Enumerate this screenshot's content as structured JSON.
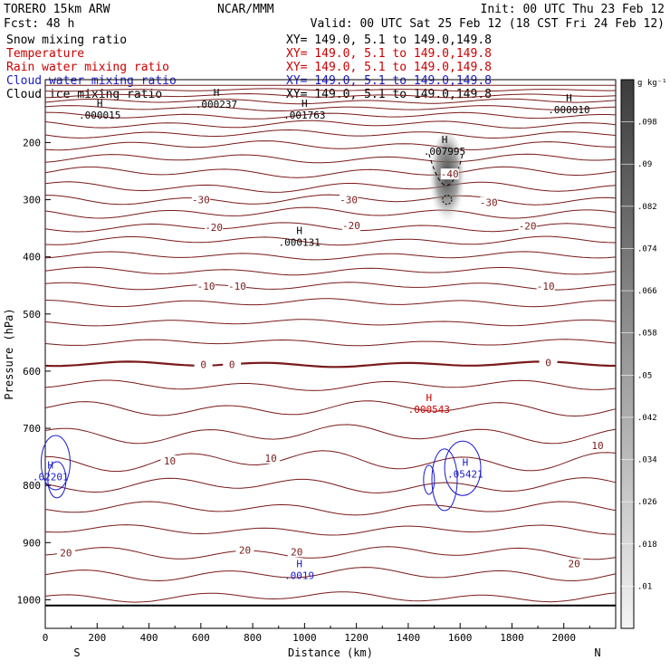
{
  "header": {
    "model": "TORERO  15km ARW",
    "org": "NCAR/MMM",
    "init": "Init: 00 UTC Thu 23 Feb 12",
    "fcst": "Fcst:   48 h",
    "valid": "Valid: 00 UTC Sat 25 Feb 12 (18 CST Fri 24 Feb 12)"
  },
  "fields": [
    {
      "name": "Snow mixing ratio",
      "xy": "",
      "color": "#000000"
    },
    {
      "name": "Temperature",
      "xy": "XY= 149.0,  5.1 to 149.0,149.8",
      "color": "#cc0000"
    },
    {
      "name": "Rain water mixing ratio",
      "xy": "XY= 149.0,  5.1 to 149.0,149.8",
      "color": "#cc0000"
    },
    {
      "name": "Cloud water mixing ratio",
      "xy": "XY= 149.0,  5.1 to 149.0,149.8",
      "color": "#1a1acc"
    },
    {
      "name": "Cloud ice mixing ratio",
      "xy": "XY= 149.0,  5.1 to 149.0,149.8",
      "color": "#000000"
    }
  ],
  "top_xy": "XY= 149.0,  5.1 to 149.0,149.8",
  "chart_data": {
    "type": "contour",
    "xlabel": "Distance (km)",
    "ylabel": "Pressure (hPa)",
    "xlim": [
      0,
      2200
    ],
    "ylim": [
      1050,
      90
    ],
    "x_ticks": [
      0,
      200,
      400,
      600,
      800,
      1000,
      1200,
      1400,
      1600,
      1800,
      2000
    ],
    "y_ticks": [
      200,
      300,
      400,
      500,
      600,
      700,
      800,
      900,
      1000
    ],
    "end_labels": {
      "left": "S",
      "right": "N"
    },
    "colorbar": {
      "unit": "g kg⁻¹",
      "levels": [
        ".098",
        ".09",
        ".082",
        ".074",
        ".066",
        ".058",
        ".05",
        ".042",
        ".034",
        ".026",
        ".018",
        ".01"
      ]
    },
    "isotherm_labels": [
      {
        "x": 600,
        "p": 300,
        "text": "-30"
      },
      {
        "x": 1170,
        "p": 300,
        "text": "-30"
      },
      {
        "x": 1560,
        "p": 255,
        "text": "-40"
      },
      {
        "x": 1710,
        "p": 305,
        "text": "-30"
      },
      {
        "x": 650,
        "p": 348,
        "text": "-20"
      },
      {
        "x": 1180,
        "p": 345,
        "text": "-20"
      },
      {
        "x": 1860,
        "p": 346,
        "text": "-20"
      },
      {
        "x": 620,
        "p": 451,
        "text": "-10"
      },
      {
        "x": 740,
        "p": 451,
        "text": "-10"
      },
      {
        "x": 1930,
        "p": 451,
        "text": "-10"
      },
      {
        "x": 610,
        "p": 588,
        "text": "0"
      },
      {
        "x": 720,
        "p": 588,
        "text": "0"
      },
      {
        "x": 1940,
        "p": 585,
        "text": "0"
      },
      {
        "x": 480,
        "p": 757,
        "text": "10"
      },
      {
        "x": 870,
        "p": 752,
        "text": "10"
      },
      {
        "x": 2130,
        "p": 730,
        "text": "10"
      },
      {
        "x": 80,
        "p": 918,
        "text": "20"
      },
      {
        "x": 770,
        "p": 913,
        "text": "20"
      },
      {
        "x": 970,
        "p": 916,
        "text": "20"
      },
      {
        "x": 2040,
        "p": 937,
        "text": "20"
      }
    ],
    "highs": [
      {
        "x": 660,
        "p": 123,
        "text": ".000237",
        "color": "#000000"
      },
      {
        "x": 210,
        "p": 142,
        "text": ".000015",
        "color": "#000000"
      },
      {
        "x": 1000,
        "p": 142,
        "text": ".001763",
        "color": "#000000"
      },
      {
        "x": 1540,
        "p": 206,
        "text": ".007995",
        "color": "#000000"
      },
      {
        "x": 2020,
        "p": 133,
        "text": ".000010",
        "color": "#000000"
      },
      {
        "x": 980,
        "p": 365,
        "text": ".000131",
        "color": "#000000"
      },
      {
        "x": 1480,
        "p": 657,
        "text": ".000543",
        "color": "#cc0000"
      },
      {
        "x": 1620,
        "p": 770,
        "text": ".05421",
        "color": "#1a1acc"
      },
      {
        "x": 20,
        "p": 775,
        "text": ".02201",
        "color": "#1a1acc"
      },
      {
        "x": 980,
        "p": 948,
        "text": ".0019",
        "color": "#1a1acc"
      }
    ]
  }
}
